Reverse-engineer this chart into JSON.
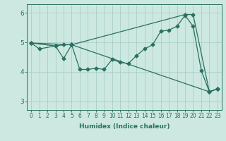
{
  "xlabel": "Humidex (Indice chaleur)",
  "xlim": [
    -0.5,
    23.5
  ],
  "ylim": [
    2.7,
    6.3
  ],
  "yticks": [
    3,
    4,
    5,
    6
  ],
  "xticks": [
    0,
    1,
    2,
    3,
    4,
    5,
    6,
    7,
    8,
    9,
    10,
    11,
    12,
    13,
    14,
    15,
    16,
    17,
    18,
    19,
    20,
    21,
    22,
    23
  ],
  "bg_color": "#cce8e0",
  "grid_color": "#aacfc8",
  "line_color": "#2a7060",
  "series": [
    {
      "x": [
        0,
        1,
        3,
        4,
        5,
        19,
        20,
        22,
        23
      ],
      "y": [
        4.98,
        4.78,
        4.88,
        4.92,
        4.92,
        5.95,
        5.95,
        3.32,
        3.42
      ]
    },
    {
      "x": [
        0,
        3,
        4,
        5,
        6,
        7,
        8,
        9,
        10,
        11,
        12,
        13,
        14,
        15,
        16,
        17,
        18,
        19,
        20,
        21,
        22,
        23
      ],
      "y": [
        4.98,
        4.88,
        4.45,
        4.92,
        4.08,
        4.08,
        4.12,
        4.08,
        4.42,
        4.32,
        4.28,
        4.55,
        4.78,
        4.92,
        5.38,
        5.42,
        5.55,
        5.92,
        5.55,
        4.05,
        3.32,
        3.42
      ]
    },
    {
      "x": [
        0,
        5,
        22,
        23
      ],
      "y": [
        4.98,
        4.92,
        3.32,
        3.42
      ]
    }
  ],
  "marker": "D",
  "markersize": 2.5,
  "linewidth": 0.9,
  "xlabel_fontsize": 6.5,
  "tick_fontsize": 5.5,
  "ytick_fontsize": 6.5
}
